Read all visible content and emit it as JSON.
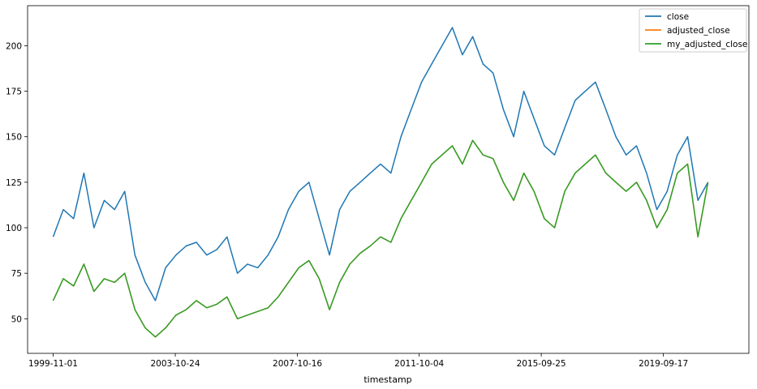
{
  "chart_data": {
    "type": "line",
    "title": "",
    "xlabel": "timestamp",
    "ylabel": "",
    "x_ticks": [
      "1999-11-01",
      "2003-10-24",
      "2007-10-16",
      "2011-10-04",
      "2015-09-25",
      "2019-09-17"
    ],
    "y_ticks": [
      50,
      75,
      100,
      125,
      150,
      175,
      200
    ],
    "xlim": [
      "1999-01-01",
      "2022-06-30"
    ],
    "ylim": [
      31,
      222
    ],
    "grid": false,
    "legend": "top-right",
    "x_dates": [
      "1999-11-01",
      "2000-03-01",
      "2000-07-01",
      "2000-11-01",
      "2001-03-01",
      "2001-07-01",
      "2001-11-01",
      "2002-03-01",
      "2002-07-01",
      "2002-11-01",
      "2003-03-01",
      "2003-07-01",
      "2003-11-01",
      "2004-03-01",
      "2004-07-01",
      "2004-11-01",
      "2005-03-01",
      "2005-07-01",
      "2005-11-01",
      "2006-03-01",
      "2006-07-01",
      "2006-11-01",
      "2007-03-01",
      "2007-07-01",
      "2007-11-01",
      "2008-03-01",
      "2008-07-01",
      "2008-11-01",
      "2009-03-01",
      "2009-07-01",
      "2009-11-01",
      "2010-03-01",
      "2010-07-01",
      "2010-11-01",
      "2011-03-01",
      "2011-07-01",
      "2011-11-01",
      "2012-03-01",
      "2012-07-01",
      "2012-11-01",
      "2013-03-01",
      "2013-07-01",
      "2013-11-01",
      "2014-03-01",
      "2014-07-01",
      "2014-11-01",
      "2015-03-01",
      "2015-07-01",
      "2015-11-01",
      "2016-03-01",
      "2016-07-01",
      "2016-11-01",
      "2017-03-01",
      "2017-07-01",
      "2017-11-01",
      "2018-03-01",
      "2018-07-01",
      "2018-11-01",
      "2019-03-01",
      "2019-07-01",
      "2019-11-01",
      "2020-03-01",
      "2020-07-01",
      "2020-11-01",
      "2021-03-01"
    ],
    "series": [
      {
        "name": "close",
        "color": "#1f77b4",
        "values": [
          95,
          110,
          105,
          130,
          100,
          115,
          110,
          120,
          85,
          70,
          60,
          78,
          85,
          90,
          92,
          85,
          88,
          95,
          75,
          80,
          78,
          85,
          95,
          110,
          120,
          125,
          105,
          85,
          110,
          120,
          125,
          130,
          135,
          130,
          150,
          165,
          180,
          190,
          200,
          210,
          195,
          205,
          190,
          185,
          165,
          150,
          175,
          160,
          145,
          140,
          155,
          170,
          175,
          180,
          165,
          150,
          140,
          145,
          130,
          110,
          120,
          140,
          150,
          115,
          125
        ]
      },
      {
        "name": "adjusted_close",
        "color": "#ff7f0e",
        "values": [
          60,
          72,
          68,
          80,
          65,
          72,
          70,
          75,
          55,
          45,
          40,
          45,
          52,
          55,
          60,
          56,
          58,
          62,
          50,
          52,
          54,
          56,
          62,
          70,
          78,
          82,
          72,
          55,
          70,
          80,
          86,
          90,
          95,
          92,
          105,
          115,
          125,
          135,
          140,
          145,
          135,
          148,
          140,
          138,
          125,
          115,
          130,
          120,
          105,
          100,
          120,
          130,
          135,
          140,
          130,
          125,
          120,
          125,
          115,
          100,
          110,
          130,
          135,
          95,
          125
        ]
      },
      {
        "name": "my_adjusted_close",
        "color": "#2ca02c",
        "values": [
          60,
          72,
          68,
          80,
          65,
          72,
          70,
          75,
          55,
          45,
          40,
          45,
          52,
          55,
          60,
          56,
          58,
          62,
          50,
          52,
          54,
          56,
          62,
          70,
          78,
          82,
          72,
          55,
          70,
          80,
          86,
          90,
          95,
          92,
          105,
          115,
          125,
          135,
          140,
          145,
          135,
          148,
          140,
          138,
          125,
          115,
          130,
          120,
          105,
          100,
          120,
          130,
          135,
          140,
          130,
          125,
          120,
          125,
          115,
          100,
          110,
          130,
          135,
          95,
          125
        ]
      }
    ]
  }
}
